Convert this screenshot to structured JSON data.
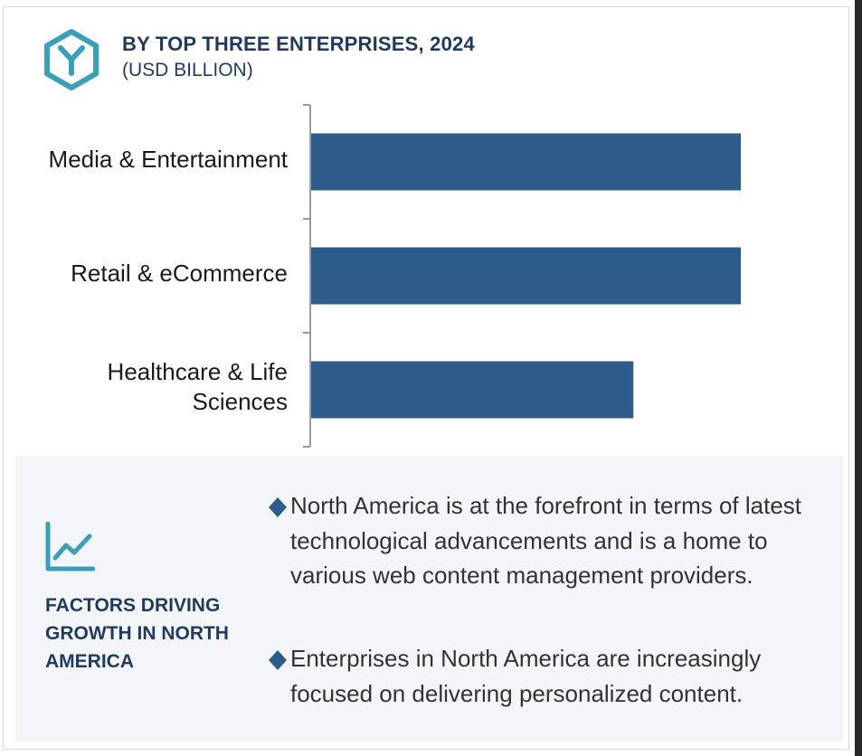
{
  "header": {
    "title": "BY TOP THREE ENTERPRISES, 2024",
    "subtitle": "(USD BILLION)",
    "icon": "y-hexagon-logo-icon",
    "accent_color": "#3aa0b8"
  },
  "chart_data": {
    "type": "bar",
    "orientation": "horizontal",
    "title": "BY TOP THREE ENTERPRISES, 2024",
    "subtitle": "(USD BILLION)",
    "categories": [
      "Media & Entertainment",
      "Retail & eCommerce",
      "Healthcare & Life\nSciences"
    ],
    "values": [
      1.0,
      1.0,
      0.75
    ],
    "xlim": [
      0,
      1.0
    ],
    "bar_color": "#2d5b8a",
    "grid": false,
    "legend": "none"
  },
  "factors": {
    "icon": "trend-line-chart-icon",
    "heading": "FACTORS DRIVING GROWTH IN NORTH AMERICA",
    "bullets": [
      "North America is at the forefront in terms of latest technological advancements and is a home to various web content management providers.",
      "Enterprises in North America are increasingly focused on delivering personalized content."
    ],
    "bullet_icon": "diamond-bullet-icon",
    "diamond_color": "#2d5b8a"
  }
}
